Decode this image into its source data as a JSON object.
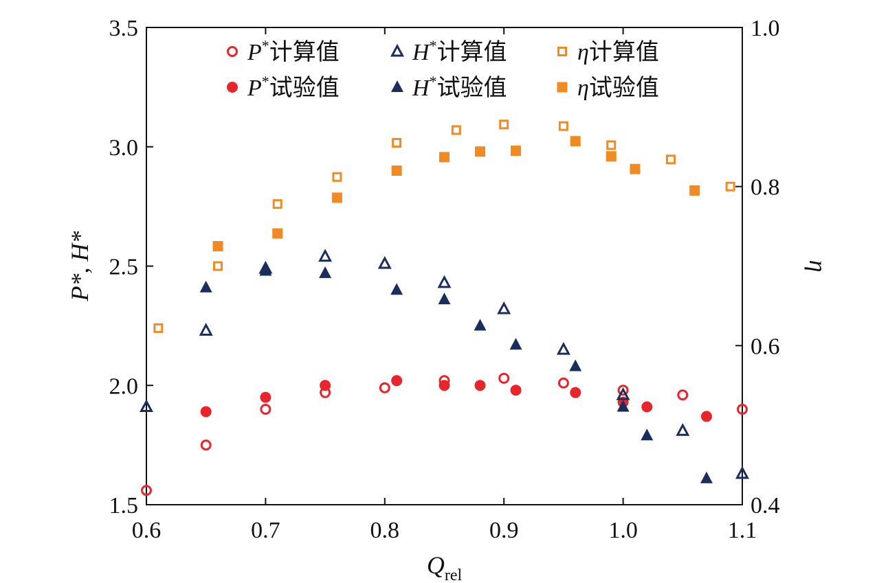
{
  "chart_data": {
    "type": "scatter",
    "x_axis": {
      "label": "Q",
      "label_subscript": "rel",
      "range": [
        0.6,
        1.1
      ],
      "ticks": [
        "0.6",
        "0.7",
        "0.8",
        "0.9",
        "1.0",
        "1.1"
      ]
    },
    "y_left": {
      "label": "P*, H*",
      "range": [
        1.5,
        3.5
      ],
      "ticks": [
        "1.5",
        "2.0",
        "2.5",
        "3.0",
        "3.5"
      ]
    },
    "y_right": {
      "label": "η",
      "range": [
        0.4,
        1.0
      ],
      "ticks": [
        "0.4",
        "0.6",
        "0.8",
        "1.0"
      ]
    },
    "grid": false,
    "legend_position": "top",
    "series": [
      {
        "name": "P*计算值",
        "symbol": "P",
        "suffix": "计算值",
        "marker": "circle-open",
        "color": "#e8252b",
        "axis": "left",
        "x": [
          0.6,
          0.65,
          0.7,
          0.75,
          0.8,
          0.85,
          0.9,
          0.95,
          1.0,
          1.05,
          1.1
        ],
        "y": [
          1.56,
          1.75,
          1.9,
          1.97,
          1.99,
          2.02,
          2.03,
          2.01,
          1.98,
          1.96,
          1.9
        ]
      },
      {
        "name": "P*试验值",
        "symbol": "P",
        "suffix": "试验值",
        "marker": "circle-filled",
        "color": "#e8252b",
        "axis": "left",
        "x": [
          0.65,
          0.7,
          0.75,
          0.81,
          0.85,
          0.88,
          0.91,
          0.96,
          1.0,
          1.02,
          1.07
        ],
        "y": [
          1.89,
          1.95,
          2.0,
          2.02,
          2.0,
          2.0,
          1.98,
          1.97,
          1.93,
          1.91,
          1.87
        ]
      },
      {
        "name": "H*计算值",
        "symbol": "H",
        "suffix": "计算值",
        "marker": "triangle-open",
        "color": "#1b2d5c",
        "axis": "left",
        "x": [
          0.6,
          0.65,
          0.7,
          0.75,
          0.8,
          0.85,
          0.9,
          0.95,
          1.0,
          1.05,
          1.1
        ],
        "y": [
          1.91,
          2.23,
          2.49,
          2.54,
          2.51,
          2.43,
          2.32,
          2.15,
          1.96,
          1.81,
          1.63
        ]
      },
      {
        "name": "H*试验值",
        "symbol": "H",
        "suffix": "试验值",
        "marker": "triangle-filled",
        "color": "#1b2d5c",
        "axis": "left",
        "x": [
          0.65,
          0.7,
          0.75,
          0.81,
          0.85,
          0.88,
          0.91,
          0.96,
          1.0,
          1.02,
          1.07
        ],
        "y": [
          2.41,
          2.48,
          2.47,
          2.4,
          2.36,
          2.25,
          2.17,
          2.08,
          1.91,
          1.79,
          1.61
        ]
      },
      {
        "name": "η计算值",
        "symbol": "η",
        "suffix": "计算值",
        "marker": "square-open",
        "color": "#f08a24",
        "axis": "right",
        "x": [
          0.61,
          0.66,
          0.71,
          0.76,
          0.81,
          0.86,
          0.9,
          0.95,
          0.99,
          1.04,
          1.09
        ],
        "y": [
          0.622,
          0.7,
          0.778,
          0.812,
          0.855,
          0.871,
          0.878,
          0.876,
          0.852,
          0.834,
          0.8
        ]
      },
      {
        "name": "η试验值",
        "symbol": "η",
        "suffix": "试验值",
        "marker": "square-filled",
        "color": "#f08a24",
        "axis": "right",
        "x": [
          0.66,
          0.71,
          0.76,
          0.81,
          0.85,
          0.88,
          0.91,
          0.96,
          0.99,
          1.01,
          1.06
        ],
        "y": [
          0.725,
          0.741,
          0.786,
          0.82,
          0.837,
          0.844,
          0.845,
          0.857,
          0.838,
          0.822,
          0.795
        ]
      }
    ]
  }
}
